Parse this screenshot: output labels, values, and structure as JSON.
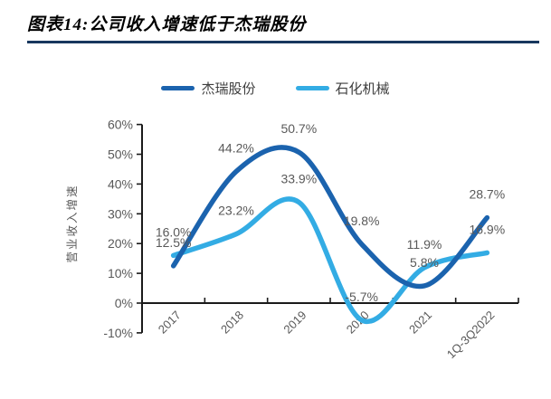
{
  "header": {
    "title": "图表14:公司收入增速低于杰瑞股份",
    "rule_color": "#17375E"
  },
  "chart_data": {
    "type": "line",
    "smooth": true,
    "categories": [
      "2017",
      "2018",
      "2019",
      "2020",
      "2021",
      "1Q-3Q2022"
    ],
    "series": [
      {
        "name": "杰瑞股份",
        "color": "#1B63AE",
        "values": [
          12.5,
          44.2,
          50.7,
          19.8,
          5.8,
          28.7
        ]
      },
      {
        "name": "石化机械",
        "color": "#33ACE4",
        "values": [
          16.0,
          23.2,
          33.9,
          -5.7,
          11.9,
          16.9
        ]
      }
    ],
    "ylabel": "营业收入增速",
    "ylim": [
      -10,
      60
    ],
    "y_ticks": [
      60,
      50,
      40,
      30,
      20,
      10,
      0,
      -10
    ],
    "tick_suffix": "%",
    "grid": false,
    "legend_position": "top",
    "data_labels": true,
    "label_color": "#595959",
    "axis_color": "#1a1a1a"
  }
}
